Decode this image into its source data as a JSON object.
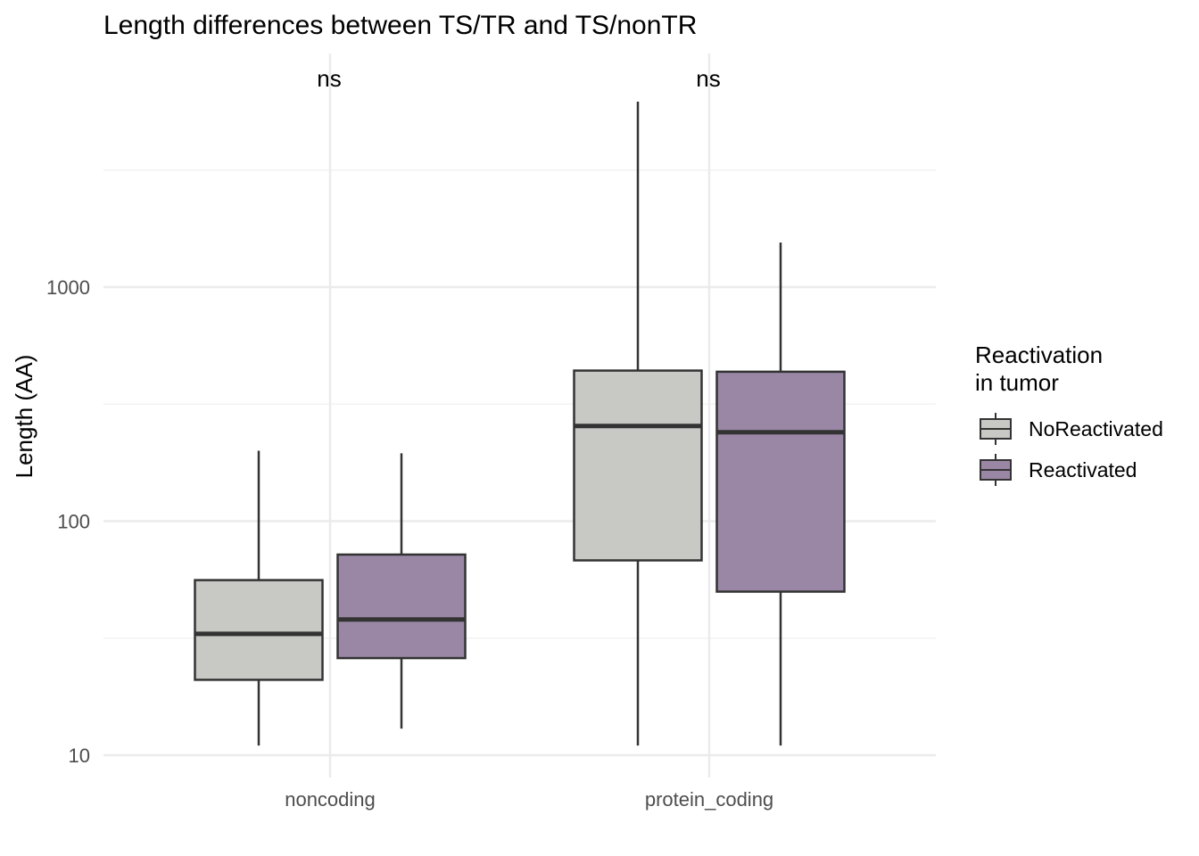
{
  "chart_data": {
    "type": "box",
    "title": "Length differences between TS/TR and TS/nonTR",
    "xlabel": "",
    "ylabel": "Length (AA)",
    "yscale": "log10",
    "ylim": [
      9.5,
      9000
    ],
    "yticks": [
      10,
      100,
      1000
    ],
    "ytick_labels": [
      "10",
      "100",
      "1000"
    ],
    "categories": [
      "noncoding",
      "protein_coding"
    ],
    "grid": true,
    "legend": {
      "title": [
        "Reactivation",
        "in tumor"
      ],
      "position": "right"
    },
    "series": [
      {
        "name": "NoReactivated",
        "color": "#c8c9c4",
        "boxes": [
          {
            "category": "noncoding",
            "whisker_low": 11,
            "q1": 21,
            "median": 33,
            "q3": 56,
            "whisker_high": 200
          },
          {
            "category": "protein_coding",
            "whisker_low": 11,
            "q1": 68,
            "median": 255,
            "q3": 440,
            "whisker_high": 6200
          }
        ]
      },
      {
        "name": "Reactivated",
        "color": "#9a87a5",
        "boxes": [
          {
            "category": "noncoding",
            "whisker_low": 13,
            "q1": 26,
            "median": 38,
            "q3": 72,
            "whisker_high": 195
          },
          {
            "category": "protein_coding",
            "whisker_low": 11,
            "q1": 50,
            "median": 240,
            "q3": 435,
            "whisker_high": 1550
          }
        ]
      }
    ],
    "annotations": [
      {
        "category": "noncoding",
        "text": "ns"
      },
      {
        "category": "protein_coding",
        "text": "ns"
      }
    ]
  }
}
